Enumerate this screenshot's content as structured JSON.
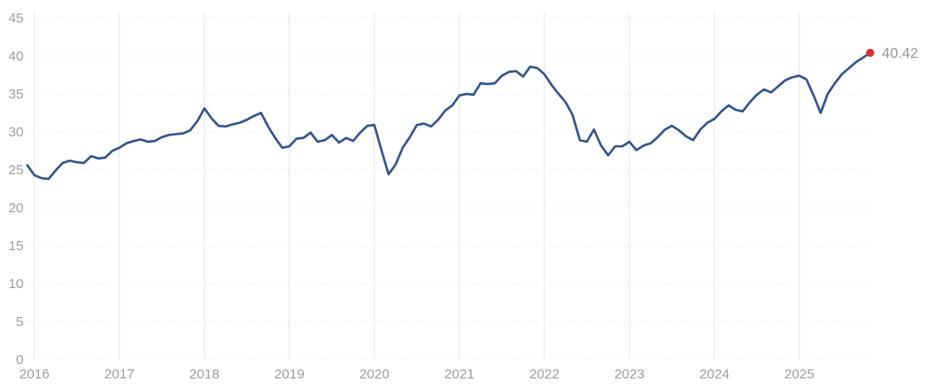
{
  "page": {
    "background_color": "#ffffff"
  },
  "chart_data": {
    "type": "line",
    "title": "",
    "legend": "none",
    "frequency": "monthly",
    "points_per_year": 12,
    "first_point_step_offset": -1,
    "ylim": [
      0,
      45
    ],
    "y_ticks": [
      0,
      5,
      10,
      15,
      20,
      25,
      30,
      35,
      40,
      45
    ],
    "y_tick_labels": [
      "0",
      "5",
      "10",
      "15",
      "20",
      "25",
      "30",
      "35",
      "40",
      "45"
    ],
    "x_tick_labels": [
      "2016",
      "2017",
      "2018",
      "2019",
      "2020",
      "2021",
      "2022",
      "2023",
      "2024",
      "2025"
    ],
    "grid": {
      "horizontal": "dotted",
      "vertical": "solid"
    },
    "values": [
      25.6,
      24.3,
      23.9,
      23.8,
      24.9,
      25.9,
      26.2,
      26.0,
      25.9,
      26.8,
      26.5,
      26.6,
      27.5,
      27.9,
      28.5,
      28.8,
      29.0,
      28.7,
      28.8,
      29.3,
      29.6,
      29.7,
      29.8,
      30.2,
      31.4,
      33.1,
      31.8,
      30.8,
      30.7,
      31.0,
      31.2,
      31.6,
      32.1,
      32.5,
      30.7,
      29.2,
      27.9,
      28.1,
      29.1,
      29.2,
      29.9,
      28.7,
      28.9,
      29.6,
      28.6,
      29.2,
      28.8,
      29.9,
      30.8,
      30.9,
      27.6,
      24.4,
      25.7,
      27.9,
      29.3,
      30.9,
      31.1,
      30.7,
      31.6,
      32.8,
      33.5,
      34.8,
      35.0,
      34.9,
      36.4,
      36.3,
      36.4,
      37.4,
      37.9,
      38.0,
      37.3,
      38.6,
      38.4,
      37.6,
      36.2,
      35.0,
      33.9,
      32.2,
      28.9,
      28.7,
      30.3,
      28.2,
      26.9,
      28.1,
      28.1,
      28.7,
      27.6,
      28.2,
      28.5,
      29.3,
      30.3,
      30.8,
      30.2,
      29.4,
      28.9,
      30.3,
      31.2,
      31.7,
      32.7,
      33.5,
      32.9,
      32.7,
      33.9,
      34.9,
      35.6,
      35.2,
      36.0,
      36.8,
      37.2,
      37.4,
      36.9,
      34.8,
      32.5,
      35.0,
      36.4,
      37.6,
      38.4,
      39.2,
      39.8,
      40.42
    ],
    "last_value": 40.42,
    "last_value_label": "40.42",
    "colors": {
      "line": "#34558c",
      "marker": "#e12d2d",
      "tick_label": "#9e9e9e",
      "value_label": "#9a9a9a",
      "grid_horizontal": "#e6e6e6",
      "grid_vertical": "#f2f2f2"
    }
  }
}
